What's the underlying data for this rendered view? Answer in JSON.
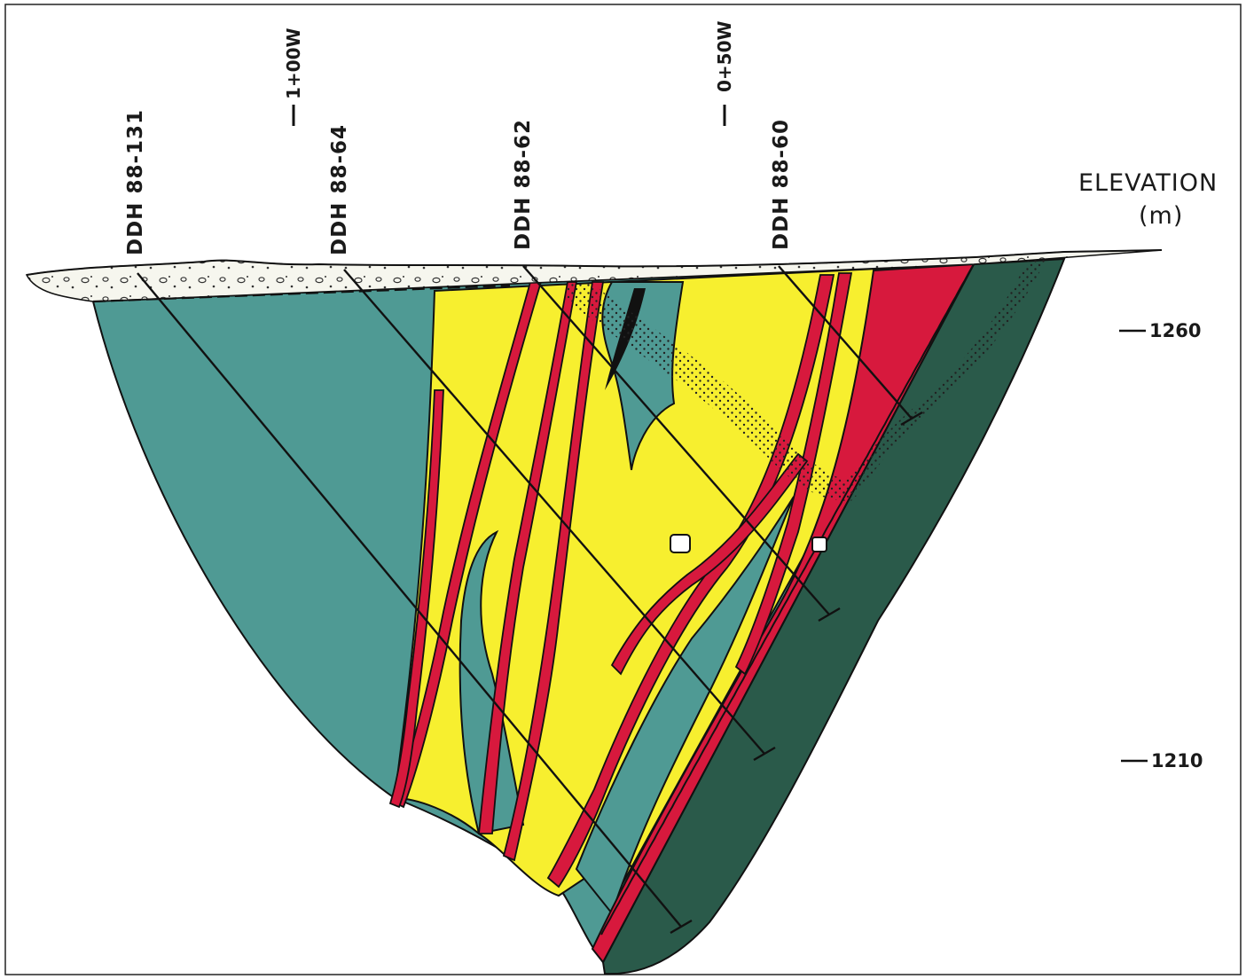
{
  "legend_header": {
    "title": "ELEVATION",
    "unit": "(m)"
  },
  "elevation_ticks": [
    {
      "label": "1260"
    },
    {
      "label": "1210"
    }
  ],
  "grid_lines": [
    {
      "label": "1+00W"
    },
    {
      "label": "0+50W"
    }
  ],
  "drill_holes": [
    {
      "id": "DDH 88-131"
    },
    {
      "id": "DDH 88-64"
    },
    {
      "id": "DDH 88-62"
    },
    {
      "id": "DDH 88-60"
    }
  ],
  "colors": {
    "host_rock": "#4f9a94",
    "footwall": "#2a5a4a",
    "yellow_unit": "#f7ef2f",
    "red_unit": "#d7193d",
    "overburden": "#f6f6ee",
    "outline": "#111111"
  }
}
